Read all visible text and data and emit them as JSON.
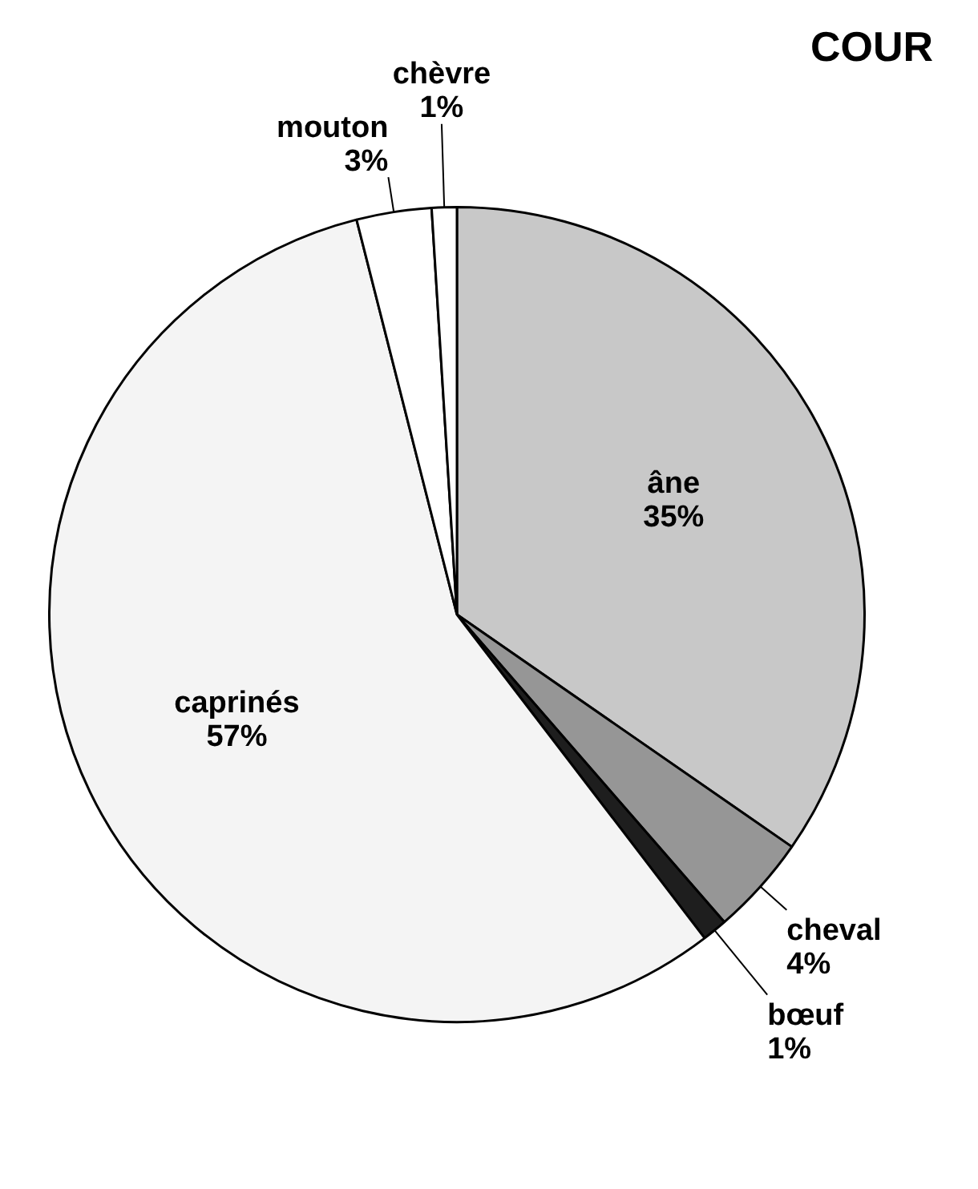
{
  "chart_data": {
    "type": "pie",
    "title": "COUR",
    "categories": [
      "âne",
      "cheval",
      "bœuf",
      "caprinés",
      "mouton",
      "chèvre"
    ],
    "values": [
      35,
      4,
      1,
      57,
      3,
      1
    ],
    "value_labels": [
      "35%",
      "4%",
      "1%",
      "57%",
      "3%",
      "1%"
    ],
    "colors": [
      "#c8c8c8",
      "#969696",
      "#1e1e1e",
      "#f4f4f4",
      "#ffffff",
      "#ffffff"
    ],
    "legend": false
  }
}
